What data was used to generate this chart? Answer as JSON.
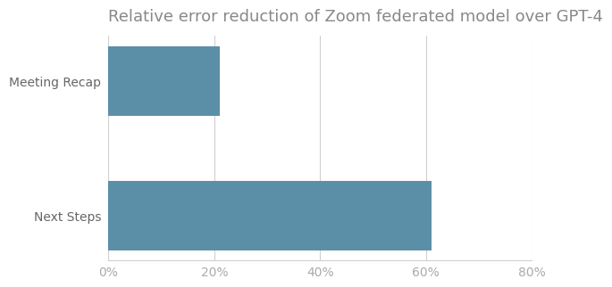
{
  "title": "Relative error reduction of Zoom federated model over GPT-4",
  "categories": [
    "Next Steps",
    "Meeting Recap"
  ],
  "values": [
    61,
    21
  ],
  "bar_color": "#5b8fa8",
  "xlim": [
    0,
    80
  ],
  "xticks": [
    0,
    20,
    40,
    60,
    80
  ],
  "xticklabels": [
    "0%",
    "20%",
    "40%",
    "60%",
    "80%"
  ],
  "title_fontsize": 13,
  "tick_fontsize": 10,
  "ylabel_fontsize": 10,
  "grid_color": "#d0d0d0",
  "background_color": "#ffffff",
  "bar_height": 0.52
}
